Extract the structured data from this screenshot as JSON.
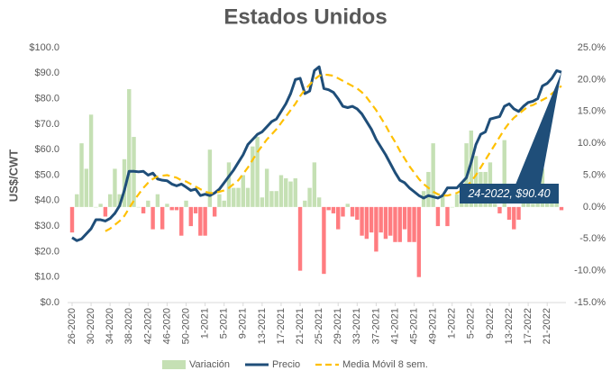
{
  "chart_data": {
    "type": "combo",
    "title": "Estados Unidos",
    "y_label": "US$/CWT",
    "annotation": "24-2022,  $90.40",
    "categories": [
      "26-2020",
      null,
      null,
      null,
      "30-2020",
      null,
      null,
      null,
      "34-2020",
      null,
      null,
      null,
      "38-2020",
      null,
      null,
      null,
      "42-2020",
      null,
      null,
      null,
      "46-2020",
      null,
      null,
      null,
      "50-2020",
      null,
      null,
      null,
      "1-2021",
      null,
      null,
      null,
      "5-2021",
      null,
      null,
      null,
      "9-2021",
      null,
      null,
      null,
      "13-2021",
      null,
      null,
      null,
      "17-2021",
      null,
      null,
      null,
      "21-2021",
      null,
      null,
      null,
      "25-2021",
      null,
      null,
      null,
      "29-2021",
      null,
      null,
      null,
      "33-2021",
      null,
      null,
      null,
      "37-2021",
      null,
      null,
      null,
      "41-2021",
      null,
      null,
      null,
      "45-2021",
      null,
      null,
      null,
      "49-2021",
      null,
      null,
      null,
      "1-2022",
      null,
      null,
      null,
      "5-2022",
      null,
      null,
      null,
      "9-2022",
      null,
      null,
      null,
      "13-2022",
      null,
      null,
      null,
      "17-2022",
      null,
      null,
      null,
      "21-2022",
      null,
      null,
      null
    ],
    "series": [
      {
        "name": "Variación",
        "kind": "bar",
        "axis": "y2",
        "color": "#c5e0b4",
        "negative_color": "#ff7c80",
        "values": [
          -4,
          2,
          10,
          6,
          14.5,
          0,
          0.5,
          -1.5,
          2,
          6,
          2,
          7.5,
          18.5,
          11,
          0,
          -1,
          1,
          -3.5,
          2,
          -3.5,
          0.5,
          -0.5,
          -0.5,
          -4.5,
          1,
          -3,
          -1,
          -4.5,
          -4.5,
          9,
          -1.5,
          2,
          1,
          7,
          3,
          3,
          5,
          3,
          9.5,
          11,
          1.5,
          6,
          2.5,
          2.5,
          5,
          4.5,
          4,
          4.5,
          -10,
          1,
          3,
          7,
          1.5,
          -10.5,
          -0.5,
          -1,
          -3.5,
          -1.5,
          0.5,
          -1.5,
          -2,
          -4.5,
          -5,
          -4,
          -7,
          -4,
          -5,
          -4.5,
          -5.5,
          -5.5,
          -3.5,
          -5.5,
          -5.5,
          -11,
          2.5,
          5.5,
          10,
          -3,
          2,
          -3,
          0,
          2,
          3,
          10,
          12,
          8,
          5.5,
          5.5,
          7,
          0.5,
          -1,
          10.5,
          -2,
          -3.5,
          -2,
          2,
          2,
          0.5,
          1,
          6,
          1,
          2.5,
          3,
          -0.5
        ]
      },
      {
        "name": "Precio",
        "kind": "line",
        "color": "#1f4e79",
        "values": [
          25.5,
          24.3,
          25,
          27,
          29,
          32.5,
          32.5,
          32,
          33,
          35,
          38,
          44,
          51.5,
          51.5,
          51.3,
          51.5,
          50,
          50.8,
          48.5,
          48,
          47.8,
          46.5,
          45.8,
          46.5,
          45.3,
          44,
          44.5,
          42,
          42.5,
          42,
          43,
          44.5,
          47,
          49.5,
          52,
          55,
          58,
          62,
          64,
          66,
          67,
          69,
          71,
          72,
          75,
          78,
          82,
          87.5,
          88,
          82,
          83,
          91,
          92.5,
          84,
          83.5,
          82.5,
          80,
          77,
          76.5,
          77,
          76,
          74,
          71,
          68,
          64,
          61,
          58,
          54.5,
          51,
          48,
          47,
          45,
          43.5,
          42,
          41,
          42,
          41.5,
          41,
          42,
          45,
          45,
          45,
          47,
          49,
          55,
          62,
          66,
          67,
          72,
          72.5,
          73,
          77,
          78,
          76,
          75,
          77,
          78.5,
          79,
          80,
          85,
          86,
          88,
          91,
          90.4
        ]
      },
      {
        "name": "Media Móvil 8 sem.",
        "kind": "dashed",
        "color": "#ffc000",
        "values": [
          null,
          null,
          null,
          null,
          null,
          null,
          null,
          28,
          29,
          30.5,
          32,
          34,
          37,
          40,
          42.5,
          45,
          47,
          48.5,
          49.5,
          49.8,
          50,
          49.5,
          49,
          48,
          47.5,
          46.5,
          45.5,
          44.5,
          43.5,
          43,
          43,
          43.5,
          44,
          45,
          46.5,
          48,
          50.5,
          53,
          56,
          59,
          61.5,
          64,
          66,
          68,
          70.5,
          73,
          75.5,
          78,
          81,
          83.5,
          85.5,
          87.5,
          89,
          89.5,
          89.3,
          89,
          88,
          87,
          86,
          85,
          84,
          82.5,
          80.5,
          78,
          75.5,
          72.5,
          69.5,
          66,
          63,
          59.5,
          56.5,
          53.5,
          51,
          48.5,
          46.5,
          45,
          43.5,
          42.5,
          42,
          42,
          42.5,
          43,
          44,
          45.5,
          47.5,
          50,
          53,
          56,
          59,
          62,
          65,
          68,
          70.5,
          72.5,
          74,
          75.5,
          77,
          77.5,
          78.5,
          79.5,
          80.5,
          82,
          83.5,
          85
        ]
      }
    ],
    "ylim": [
      0,
      100
    ],
    "yticks": [
      {
        "value": 0,
        "label": "$0.0"
      },
      {
        "value": 10,
        "label": "$10.0"
      },
      {
        "value": 20,
        "label": "$20.0"
      },
      {
        "value": 30,
        "label": "$30.0"
      },
      {
        "value": 40,
        "label": "$40.0"
      },
      {
        "value": 50,
        "label": "$50.0"
      },
      {
        "value": 60,
        "label": "$60.0"
      },
      {
        "value": 70,
        "label": "$70.0"
      },
      {
        "value": 80,
        "label": "$80.0"
      },
      {
        "value": 90,
        "label": "$90.0"
      },
      {
        "value": 100,
        "label": "$100.0"
      }
    ],
    "y2lim": [
      -15,
      25
    ],
    "y2ticks": [
      {
        "value": -15,
        "label": "-15.0%"
      },
      {
        "value": -10,
        "label": "-10.0%"
      },
      {
        "value": -5,
        "label": "-5.0%"
      },
      {
        "value": 0,
        "label": "0.0%"
      },
      {
        "value": 5,
        "label": "5.0%"
      },
      {
        "value": 10,
        "label": "10.0%"
      },
      {
        "value": 15,
        "label": "15.0%"
      },
      {
        "value": 20,
        "label": "20.0%"
      },
      {
        "value": 25,
        "label": "25.0%"
      }
    ],
    "grid": false,
    "legend": "bottom"
  }
}
